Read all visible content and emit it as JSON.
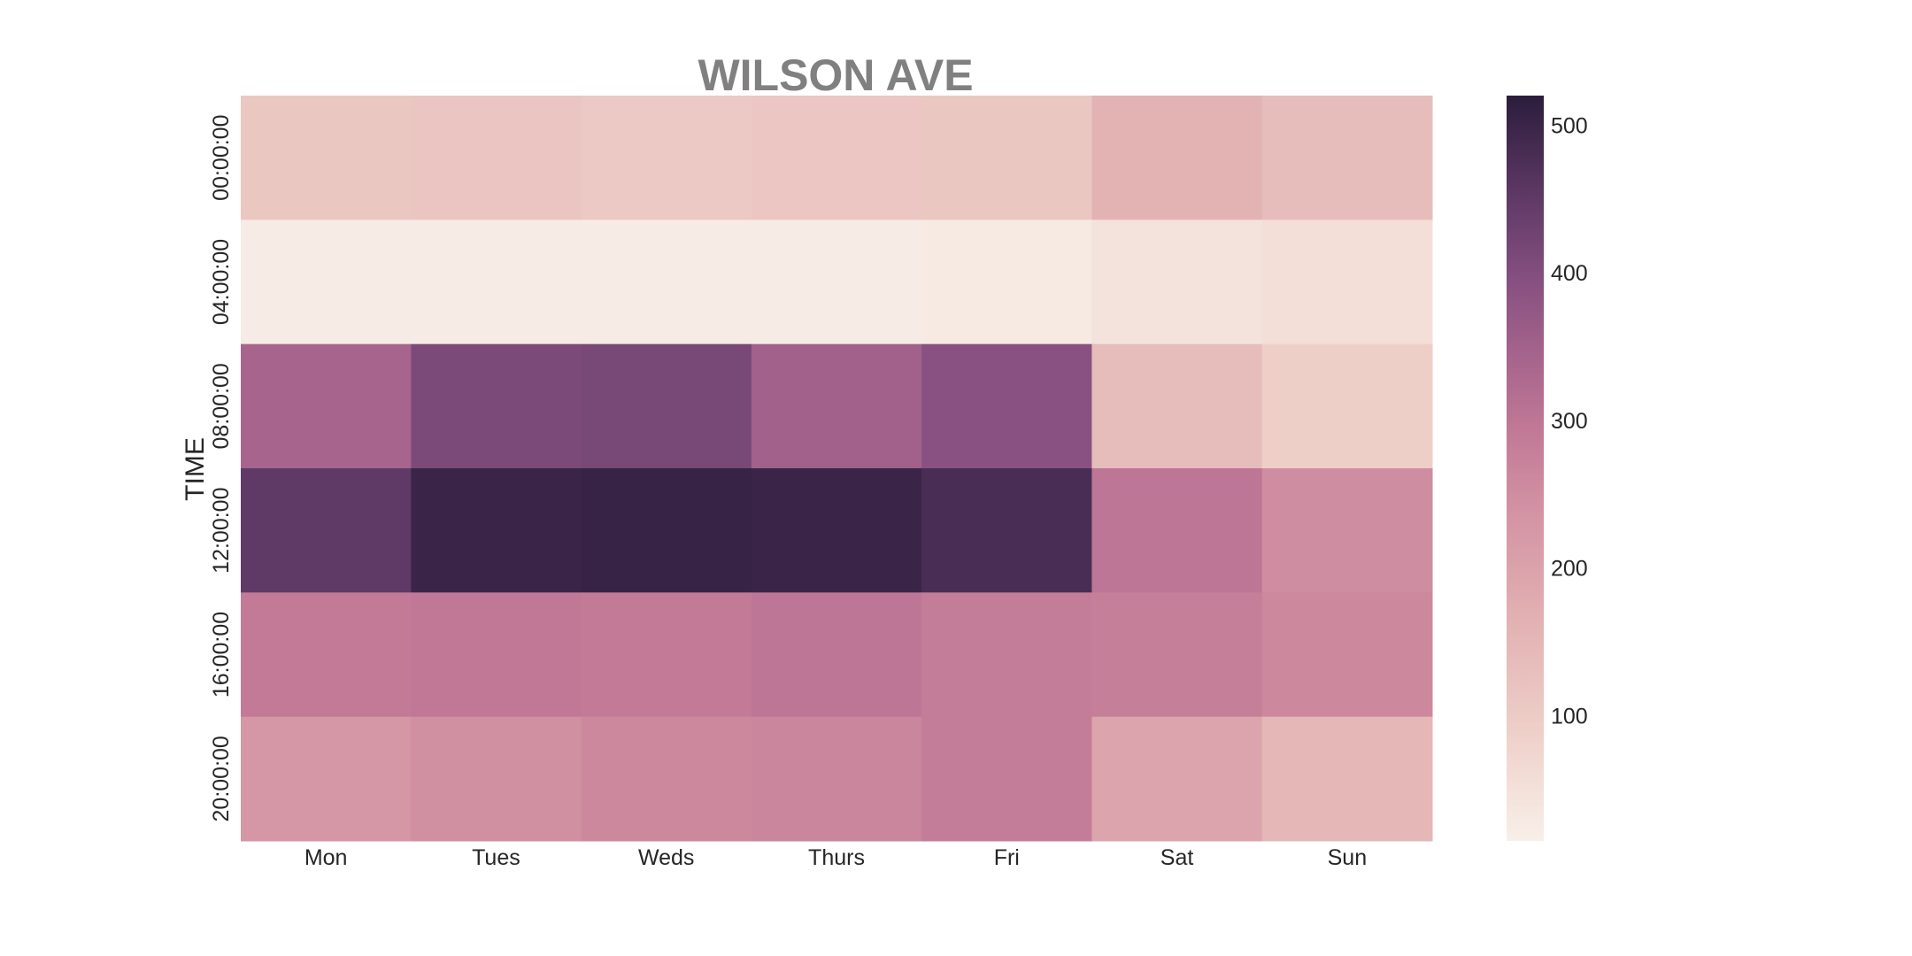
{
  "chart_data": {
    "type": "heatmap",
    "title": "WILSON AVE",
    "xlabel": "",
    "ylabel": "TIME",
    "x_categories": [
      "Mon",
      "Tues",
      "Weds",
      "Thurs",
      "Fri",
      "Sat",
      "Sun"
    ],
    "y_categories": [
      "00:00:00",
      "04:00:00",
      "08:00:00",
      "12:00:00",
      "16:00:00",
      "20:00:00"
    ],
    "values": [
      [
        110,
        115,
        105,
        112,
        110,
        160,
        135
      ],
      [
        25,
        25,
        25,
        25,
        28,
        45,
        55
      ],
      [
        340,
        410,
        415,
        350,
        390,
        135,
        90
      ],
      [
        450,
        500,
        505,
        500,
        480,
        300,
        250
      ],
      [
        290,
        295,
        290,
        300,
        285,
        280,
        260
      ],
      [
        230,
        245,
        260,
        265,
        285,
        195,
        150
      ]
    ],
    "colorbar": {
      "min": 15,
      "max": 520,
      "ticks": [
        100,
        200,
        300,
        400,
        500
      ]
    },
    "colors": {
      "low": "#f8efe9",
      "mid": "#c47f9c",
      "high": "#2d1e3e"
    },
    "grid": false
  }
}
